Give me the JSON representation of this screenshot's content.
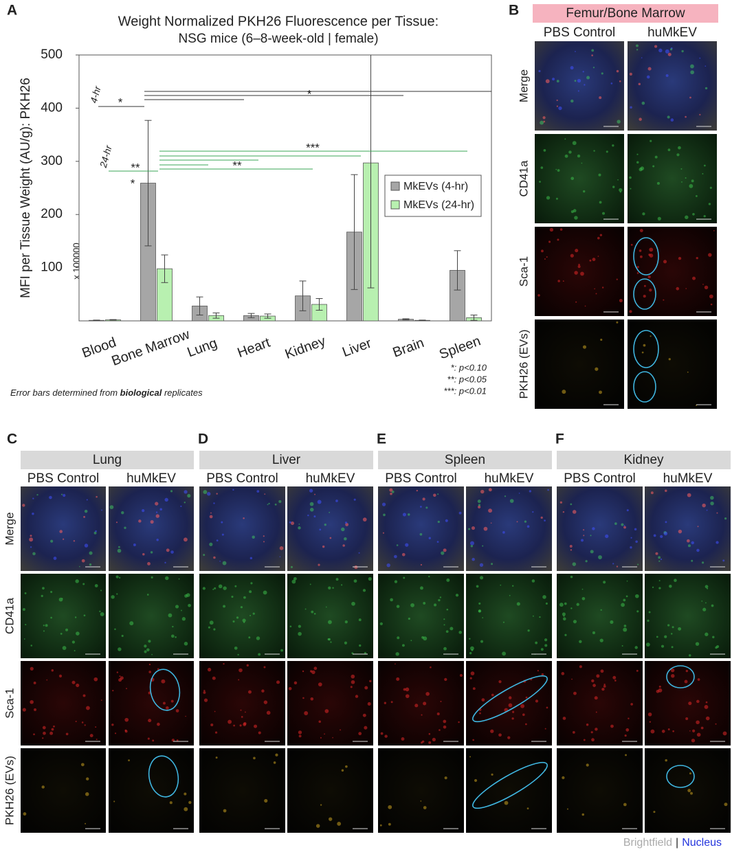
{
  "panel_labels": [
    "A",
    "B",
    "C",
    "D",
    "E",
    "F"
  ],
  "chart_data": {
    "type": "bar",
    "title": "Weight Normalized PKH26 Fluorescence per Tissue:",
    "subtitle": "NSG mice (6–8-week-old | female)",
    "y_label": "MFI per Tissue Weight (AU/g): PKH26",
    "y_multiplier": "x 100000",
    "categories": [
      "Blood",
      "Bone Marrow",
      "Lung",
      "Heart",
      "Kidney",
      "Liver",
      "Brain",
      "Spleen"
    ],
    "series": [
      {
        "name": "MkEVs (4-hr)",
        "color": "#a6a6a6",
        "values": [
          1,
          259,
          28,
          10,
          47,
          167,
          3,
          95
        ],
        "errors": [
          0.5,
          118,
          17,
          4,
          28,
          108,
          1,
          37
        ]
      },
      {
        "name": "MkEVs (24-hr)",
        "color": "#b8f0b0",
        "values": [
          2,
          98,
          10,
          9,
          31,
          297,
          1,
          6
        ],
        "errors": [
          0.5,
          26,
          5,
          4,
          11,
          235,
          0.5,
          5
        ]
      }
    ],
    "ylim": [
      0,
      500
    ],
    "yticks": [
      100,
      200,
      300,
      400,
      500
    ],
    "legend_position": "right",
    "annotations": [
      {
        "text": "4-hr",
        "color": "#222222"
      },
      {
        "text": "*",
        "color": "#222222"
      },
      {
        "text": "*",
        "color": "#222222"
      },
      {
        "text": "24-hr",
        "color": "#3aa655"
      },
      {
        "text": "**",
        "color": "#3aa655"
      },
      {
        "text": "*",
        "color": "#3aa655"
      },
      {
        "text": "***",
        "color": "#3aa655"
      },
      {
        "text": "**",
        "color": "#3aa655"
      }
    ],
    "significance_legend": [
      "*: p<0.10",
      "**: p<0.05",
      "***: p<0.01"
    ],
    "footnote": [
      "Error bars determined from ",
      "biological",
      " replicates"
    ]
  },
  "image_panels": [
    {
      "tissue": "Femur/Bone Marrow",
      "columns": [
        "PBS Control",
        "huMkEV"
      ],
      "rows": [
        "Merge",
        "CD41a",
        "Sca-1",
        "PKH26 (EVs)"
      ]
    },
    {
      "tissue": "Lung",
      "columns": [
        "PBS Control",
        "huMkEV"
      ],
      "rows": [
        "Merge",
        "CD41a",
        "Sca-1",
        "PKH26 (EVs)"
      ]
    },
    {
      "tissue": "Liver",
      "columns": [
        "PBS Control",
        "huMkEV"
      ]
    },
    {
      "tissue": "Spleen",
      "columns": [
        "PBS Control",
        "huMkEV"
      ]
    },
    {
      "tissue": "Kidney",
      "columns": [
        "PBS Control",
        "huMkEV"
      ]
    }
  ],
  "channel_legend": {
    "brightfield": "Brightfield",
    "separator": "|",
    "nucleus": "Nucleus"
  }
}
